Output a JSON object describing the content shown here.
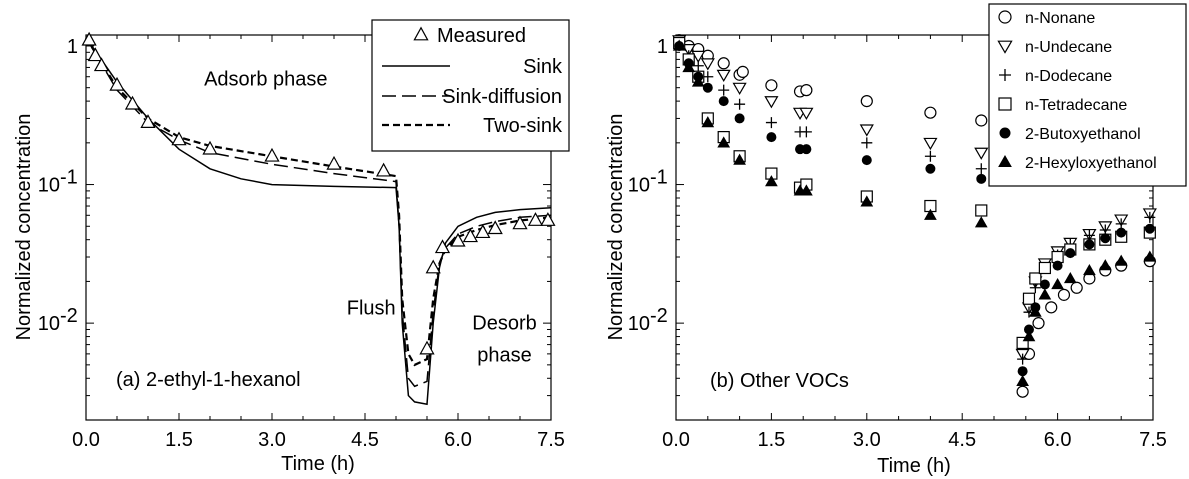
{
  "chart_data": [
    {
      "type": "line",
      "panel_label": "(a) 2-ethyl-1-hexanol",
      "xlabel": "Time (h)",
      "ylabel": "Normalized concentration",
      "xlim": [
        0,
        7.5
      ],
      "ylim": [
        0.002,
        1.2
      ],
      "y_scale": "log",
      "x_ticks": [
        "0.0",
        "1.5",
        "3.0",
        "4.5",
        "6.0",
        "7.5"
      ],
      "y_ticks": [
        {
          "value": 1,
          "base": "1",
          "exp": ""
        },
        {
          "value": 0.1,
          "base": "10",
          "exp": "-1"
        },
        {
          "value": 0.01,
          "base": "10",
          "exp": "-2"
        }
      ],
      "annotations": [
        {
          "text": "Adsorb phase",
          "x": 2.9,
          "y": 0.52
        },
        {
          "text": "Flush",
          "x": 4.6,
          "y": 0.0115
        },
        {
          "text": "Desorb",
          "x": 6.75,
          "y": 0.009
        },
        {
          "text": "phase",
          "x": 6.75,
          "y": 0.0053
        }
      ],
      "legend": {
        "position": "top-right",
        "entries": [
          "Measured",
          "Sink",
          "Sink-diffusion",
          "Two-sink"
        ]
      },
      "series": [
        {
          "name": "Measured",
          "style": "marker",
          "marker": "triangle-open",
          "x": [
            0.05,
            0.15,
            0.25,
            0.5,
            0.75,
            1.0,
            1.5,
            2.0,
            3.0,
            4.0,
            4.8,
            5.5,
            5.6,
            5.75,
            6.0,
            6.2,
            6.4,
            6.6,
            7.0,
            7.25,
            7.45
          ],
          "y": [
            1.1,
            0.85,
            0.72,
            0.52,
            0.38,
            0.28,
            0.21,
            0.18,
            0.16,
            0.14,
            0.125,
            0.0065,
            0.025,
            0.035,
            0.039,
            0.042,
            0.045,
            0.048,
            0.052,
            0.055,
            0.055
          ]
        },
        {
          "name": "Sink",
          "style": "solid",
          "x": [
            0,
            0.5,
            1.0,
            1.5,
            2.0,
            2.5,
            3.0,
            4.0,
            5.0,
            5.05,
            5.1,
            5.2,
            5.3,
            5.5,
            5.6,
            5.7,
            5.8,
            6.0,
            6.3,
            6.6,
            7.0,
            7.5
          ],
          "y": [
            1.15,
            0.55,
            0.3,
            0.18,
            0.13,
            0.11,
            0.1,
            0.097,
            0.095,
            0.05,
            0.01,
            0.003,
            0.0027,
            0.0026,
            0.01,
            0.025,
            0.038,
            0.05,
            0.058,
            0.063,
            0.066,
            0.068
          ]
        },
        {
          "name": "Sink-diffusion",
          "style": "dashed",
          "x": [
            0,
            0.5,
            1.0,
            1.5,
            2.0,
            3.0,
            4.0,
            5.0,
            5.05,
            5.1,
            5.2,
            5.3,
            5.5,
            5.6,
            5.7,
            5.8,
            6.0,
            6.3,
            6.6,
            7.0,
            7.5
          ],
          "y": [
            1.15,
            0.48,
            0.28,
            0.21,
            0.17,
            0.14,
            0.12,
            0.105,
            0.05,
            0.012,
            0.004,
            0.0035,
            0.0038,
            0.012,
            0.027,
            0.035,
            0.044,
            0.05,
            0.054,
            0.058,
            0.06
          ]
        },
        {
          "name": "Two-sink",
          "style": "dotted",
          "x": [
            0,
            0.5,
            1.0,
            1.5,
            2.0,
            3.0,
            4.0,
            5.0,
            5.05,
            5.1,
            5.2,
            5.3,
            5.5,
            5.6,
            5.7,
            5.8,
            6.0,
            6.3,
            6.6,
            7.0,
            7.5
          ],
          "y": [
            1.15,
            0.5,
            0.3,
            0.22,
            0.19,
            0.16,
            0.135,
            0.115,
            0.06,
            0.015,
            0.006,
            0.005,
            0.0055,
            0.015,
            0.027,
            0.034,
            0.042,
            0.047,
            0.051,
            0.055,
            0.058
          ]
        }
      ]
    },
    {
      "type": "scatter",
      "panel_label": "(b) Other VOCs",
      "xlabel": "Time (h)",
      "ylabel": "Normalized concentration",
      "xlim": [
        0,
        7.5
      ],
      "ylim": [
        0.002,
        1.2
      ],
      "y_scale": "log",
      "x_ticks": [
        "0.0",
        "1.5",
        "3.0",
        "4.5",
        "6.0",
        "7.5"
      ],
      "y_ticks": [
        {
          "value": 1,
          "base": "1",
          "exp": ""
        },
        {
          "value": 0.1,
          "base": "10",
          "exp": "-1"
        },
        {
          "value": 0.01,
          "base": "10",
          "exp": "-2"
        }
      ],
      "legend": {
        "position": "top-right",
        "entries": [
          "n-Nonane",
          "n-Undecane",
          "n-Dodecane",
          "n-Tetradecane",
          "2-Butoxyethanol",
          "2-Hexyloxyethanol"
        ]
      },
      "series": [
        {
          "name": "n-Nonane",
          "marker": "circle-open",
          "x": [
            0.05,
            0.2,
            0.35,
            0.5,
            0.75,
            1.0,
            1.05,
            1.5,
            1.95,
            2.05,
            3.0,
            4.0,
            4.8,
            5.45,
            5.55,
            5.7,
            5.9,
            6.1,
            6.3,
            6.5,
            6.75,
            7.0,
            7.45
          ],
          "y": [
            1.1,
            1.0,
            0.95,
            0.85,
            0.75,
            0.62,
            0.65,
            0.52,
            0.47,
            0.48,
            0.4,
            0.33,
            0.29,
            0.0032,
            0.006,
            0.01,
            0.013,
            0.016,
            0.018,
            0.021,
            0.024,
            0.026,
            0.028
          ]
        },
        {
          "name": "n-Undecane",
          "marker": "triangle-down-open",
          "x": [
            0.05,
            0.2,
            0.35,
            0.5,
            0.75,
            1.0,
            1.5,
            1.95,
            2.05,
            3.0,
            4.0,
            4.8,
            5.45,
            5.55,
            5.65,
            5.8,
            6.0,
            6.2,
            6.5,
            6.75,
            7.0,
            7.45
          ],
          "y": [
            1.1,
            0.95,
            0.85,
            0.75,
            0.62,
            0.5,
            0.4,
            0.33,
            0.33,
            0.25,
            0.2,
            0.17,
            0.006,
            0.013,
            0.02,
            0.027,
            0.033,
            0.038,
            0.044,
            0.05,
            0.056,
            0.062
          ]
        },
        {
          "name": "n-Dodecane",
          "marker": "plus",
          "x": [
            0.05,
            0.2,
            0.35,
            0.5,
            0.75,
            1.0,
            1.5,
            1.95,
            2.05,
            3.0,
            4.0,
            4.8,
            5.45,
            5.55,
            5.65,
            5.8,
            6.0,
            6.2,
            6.5,
            6.75,
            7.0,
            7.45
          ],
          "y": [
            1.05,
            0.85,
            0.72,
            0.6,
            0.48,
            0.38,
            0.28,
            0.24,
            0.24,
            0.2,
            0.16,
            0.13,
            0.0055,
            0.012,
            0.018,
            0.025,
            0.031,
            0.037,
            0.043,
            0.047,
            0.052,
            0.058
          ]
        },
        {
          "name": "n-Tetradecane",
          "marker": "square-open",
          "x": [
            0.05,
            0.2,
            0.35,
            0.5,
            0.75,
            1.0,
            1.5,
            1.95,
            2.05,
            3.0,
            4.0,
            4.8,
            5.45,
            5.55,
            5.65,
            5.8,
            6.0,
            6.2,
            6.5,
            6.75,
            7.0,
            7.45
          ],
          "y": [
            1.05,
            0.8,
            0.6,
            0.3,
            0.22,
            0.16,
            0.12,
            0.095,
            0.1,
            0.082,
            0.07,
            0.065,
            0.0072,
            0.015,
            0.021,
            0.025,
            0.03,
            0.034,
            0.037,
            0.04,
            0.042,
            0.045
          ]
        },
        {
          "name": "2-Butoxyethanol",
          "marker": "circle-filled",
          "x": [
            0.05,
            0.2,
            0.35,
            0.5,
            0.75,
            1.0,
            1.5,
            1.95,
            2.05,
            3.0,
            4.0,
            4.8,
            5.45,
            5.55,
            5.65,
            5.8,
            6.0,
            6.2,
            6.5,
            6.75,
            7.0,
            7.45
          ],
          "y": [
            1.0,
            0.75,
            0.6,
            0.5,
            0.4,
            0.3,
            0.22,
            0.18,
            0.18,
            0.15,
            0.13,
            0.11,
            0.0045,
            0.009,
            0.013,
            0.019,
            0.026,
            0.032,
            0.037,
            0.041,
            0.045,
            0.048
          ]
        },
        {
          "name": "2-Hexyloxyethanol",
          "marker": "triangle-filled",
          "x": [
            0.05,
            0.2,
            0.35,
            0.5,
            0.75,
            1.0,
            1.5,
            1.95,
            2.05,
            3.0,
            4.0,
            4.8,
            5.45,
            5.55,
            5.65,
            5.8,
            6.0,
            6.2,
            6.5,
            6.75,
            7.0,
            7.45
          ],
          "y": [
            1.0,
            0.7,
            0.55,
            0.28,
            0.2,
            0.15,
            0.105,
            0.09,
            0.09,
            0.075,
            0.06,
            0.053,
            0.0038,
            0.008,
            0.012,
            0.016,
            0.019,
            0.021,
            0.024,
            0.026,
            0.028,
            0.03
          ]
        }
      ]
    }
  ]
}
